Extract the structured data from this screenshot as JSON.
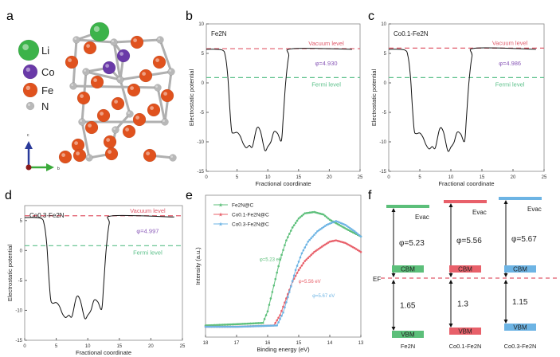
{
  "panel_labels": {
    "a": "a",
    "b": "b",
    "c": "c",
    "d": "d",
    "e": "e",
    "f": "f"
  },
  "structure": {
    "legend": [
      {
        "label": "Li",
        "color": "#3cb34a"
      },
      {
        "label": "Co",
        "color": "#6a3aa8"
      },
      {
        "label": "Fe",
        "color": "#e0521e"
      },
      {
        "label": "N",
        "color": "#b8b8b8"
      }
    ],
    "axes": {
      "c": "c",
      "b": "b",
      "a": "a"
    }
  },
  "colors": {
    "vacuum": "#e05a6a",
    "fermi": "#5cc08a",
    "phi": "#8a5ab8",
    "green": "#5cbf7a",
    "red": "#e8606a",
    "blue": "#6db4e4"
  },
  "chart_data": [
    {
      "id": "b",
      "type": "line",
      "title": "Fe2N",
      "xlabel": "Fractional coordinate",
      "ylabel": "Electrostatic potential",
      "xlim": [
        0,
        25
      ],
      "ylim": [
        -15,
        10
      ],
      "xticks": [
        0,
        5,
        10,
        15,
        20,
        25
      ],
      "yticks": [
        -15,
        -10,
        -5,
        0,
        5,
        10
      ],
      "vacuum_level": 5.8,
      "fermi_level": 0.9,
      "vacuum_label": "Vacuum level",
      "fermi_label": "Fermi level",
      "phi_label": "φ=4.930",
      "x": [
        0,
        2.5,
        3.1,
        3.5,
        3.8,
        4.1,
        4.4,
        5,
        5.5,
        6,
        6.5,
        7,
        7.5,
        8.2,
        8.8,
        9.5,
        10,
        10.5,
        11,
        11.6,
        12.2,
        12.5,
        12.9,
        13.4,
        14,
        23.7
      ],
      "y": [
        5.7,
        5.6,
        4.5,
        1,
        -4,
        -8,
        -8.5,
        -8.4,
        -9,
        -10.3,
        -11,
        -10.6,
        -10.8,
        -7.7,
        -8.2,
        -11.4,
        -10.8,
        -10,
        -8.3,
        -8.6,
        -9.8,
        -6,
        0,
        4.5,
        5.8,
        5.7
      ]
    },
    {
      "id": "c",
      "type": "line",
      "title": "Co0.1-Fe2N",
      "xlabel": "Fractional coordinate",
      "ylabel": "Electrostatic potential",
      "xlim": [
        0,
        25
      ],
      "ylim": [
        -15,
        10
      ],
      "xticks": [
        0,
        5,
        10,
        15,
        20,
        25
      ],
      "yticks": [
        -15,
        -10,
        -5,
        0,
        5,
        10
      ],
      "vacuum_level": 5.9,
      "fermi_level": 0.9,
      "vacuum_label": "Vacuum level",
      "fermi_label": "Fermi level",
      "phi_label": "φ=4.986",
      "x": [
        0,
        2.5,
        3.1,
        3.5,
        3.8,
        4.1,
        4.4,
        5,
        5.5,
        6,
        6.5,
        7,
        7.5,
        8.2,
        8.8,
        9.5,
        10,
        10.5,
        11,
        11.6,
        12.2,
        12.5,
        12.9,
        13.4,
        14,
        23.7
      ],
      "y": [
        5.7,
        5.6,
        4.5,
        1,
        -4,
        -8,
        -8.6,
        -8.5,
        -9.2,
        -10.5,
        -11.2,
        -10.8,
        -11,
        -7.8,
        -8.3,
        -11.5,
        -10.9,
        -10.1,
        -8.4,
        -8.7,
        -9.9,
        -6,
        0,
        4.5,
        5.9,
        5.7
      ]
    },
    {
      "id": "d",
      "type": "line",
      "title": "Co0.3-Fe2N",
      "xlabel": "Fractional coordinate",
      "ylabel": "Electrostatic potential",
      "xlim": [
        0,
        25
      ],
      "ylim": [
        -15,
        7.5
      ],
      "xticks": [
        0,
        5,
        10,
        15,
        20,
        25
      ],
      "yticks": [
        -15,
        -10,
        -5,
        0,
        5
      ],
      "vacuum_level": 5.8,
      "fermi_level": 0.8,
      "vacuum_label": "Vacuum level",
      "fermi_label": "Fermi level",
      "phi_label": "φ=4.997",
      "x": [
        0,
        2.5,
        3.1,
        3.5,
        3.8,
        4.1,
        4.4,
        5,
        5.5,
        6,
        6.5,
        7,
        7.5,
        8.2,
        8.8,
        9.5,
        10,
        10.5,
        11,
        11.6,
        12.2,
        12.5,
        12.9,
        13.4,
        14,
        23.7
      ],
      "y": [
        5.5,
        5.4,
        4.3,
        1,
        -4,
        -8,
        -8.8,
        -8.7,
        -9.3,
        -10.6,
        -11.2,
        -10.8,
        -11,
        -7.8,
        -8.3,
        -11.3,
        -10.8,
        -10,
        -8.3,
        -8.6,
        -9.8,
        -6,
        0,
        4.5,
        5.8,
        5.6
      ]
    },
    {
      "id": "e",
      "type": "line",
      "title": "",
      "xlabel": "Binding energy (eV)",
      "ylabel": "Intensity (a.u.)",
      "xlim": [
        18,
        13
      ],
      "ylim": [
        -0.05,
        1.05
      ],
      "xticks": [
        18,
        17,
        16,
        15,
        14,
        13
      ],
      "legend_position": "top-left",
      "series": [
        {
          "name": "Fe2N@C",
          "color": "#5cbf7a",
          "annotation": "φ=5.23 eV",
          "x": [
            18,
            17,
            16.15,
            16.0,
            15.8,
            15.6,
            15.4,
            15.2,
            15.0,
            14.8,
            14.5,
            14.2,
            14.0,
            13.7,
            13.4,
            13.0
          ],
          "y": [
            0.04,
            0.05,
            0.06,
            0.15,
            0.35,
            0.55,
            0.7,
            0.8,
            0.87,
            0.91,
            0.92,
            0.9,
            0.86,
            0.82,
            0.78,
            0.73
          ]
        },
        {
          "name": "Co0.1-Fe2N@C",
          "color": "#e8606a",
          "annotation": "φ=5.56 eV",
          "x": [
            18,
            17,
            15.8,
            15.6,
            15.4,
            15.2,
            15.0,
            14.8,
            14.5,
            14.2,
            14.0,
            13.8,
            13.5,
            13.2,
            13.0
          ],
          "y": [
            0.03,
            0.03,
            0.04,
            0.12,
            0.25,
            0.38,
            0.47,
            0.54,
            0.61,
            0.66,
            0.69,
            0.7,
            0.68,
            0.64,
            0.61
          ]
        },
        {
          "name": "Co0.3-Fe2N@C",
          "color": "#6db4e4",
          "annotation": "φ=5.67 eV",
          "x": [
            18,
            17,
            15.7,
            15.5,
            15.3,
            15.1,
            14.9,
            14.7,
            14.4,
            14.1,
            13.8,
            13.5,
            13.2,
            13.0
          ],
          "y": [
            0.03,
            0.03,
            0.04,
            0.14,
            0.3,
            0.47,
            0.6,
            0.69,
            0.77,
            0.82,
            0.85,
            0.82,
            0.77,
            0.73
          ]
        }
      ]
    }
  ],
  "band_diagram": {
    "ef_label": "EF",
    "columns": [
      {
        "name": "Fe2N",
        "color": "#5cbf7a",
        "evac": "Evac",
        "phi": "φ=5.23",
        "cbm": "CBM",
        "gap": "1.65",
        "vbm": "VBM"
      },
      {
        "name": "Co0.1-Fe2N",
        "color": "#e8606a",
        "evac": "Evac",
        "phi": "φ=5.56",
        "cbm": "CBM",
        "gap": "1.3",
        "vbm": "VBM"
      },
      {
        "name": "Co0.3-Fe2N",
        "color": "#6db4e4",
        "evac": "Evac",
        "phi": "φ=5.67",
        "cbm": "CBM",
        "gap": "1.15",
        "vbm": "VBM"
      }
    ]
  }
}
